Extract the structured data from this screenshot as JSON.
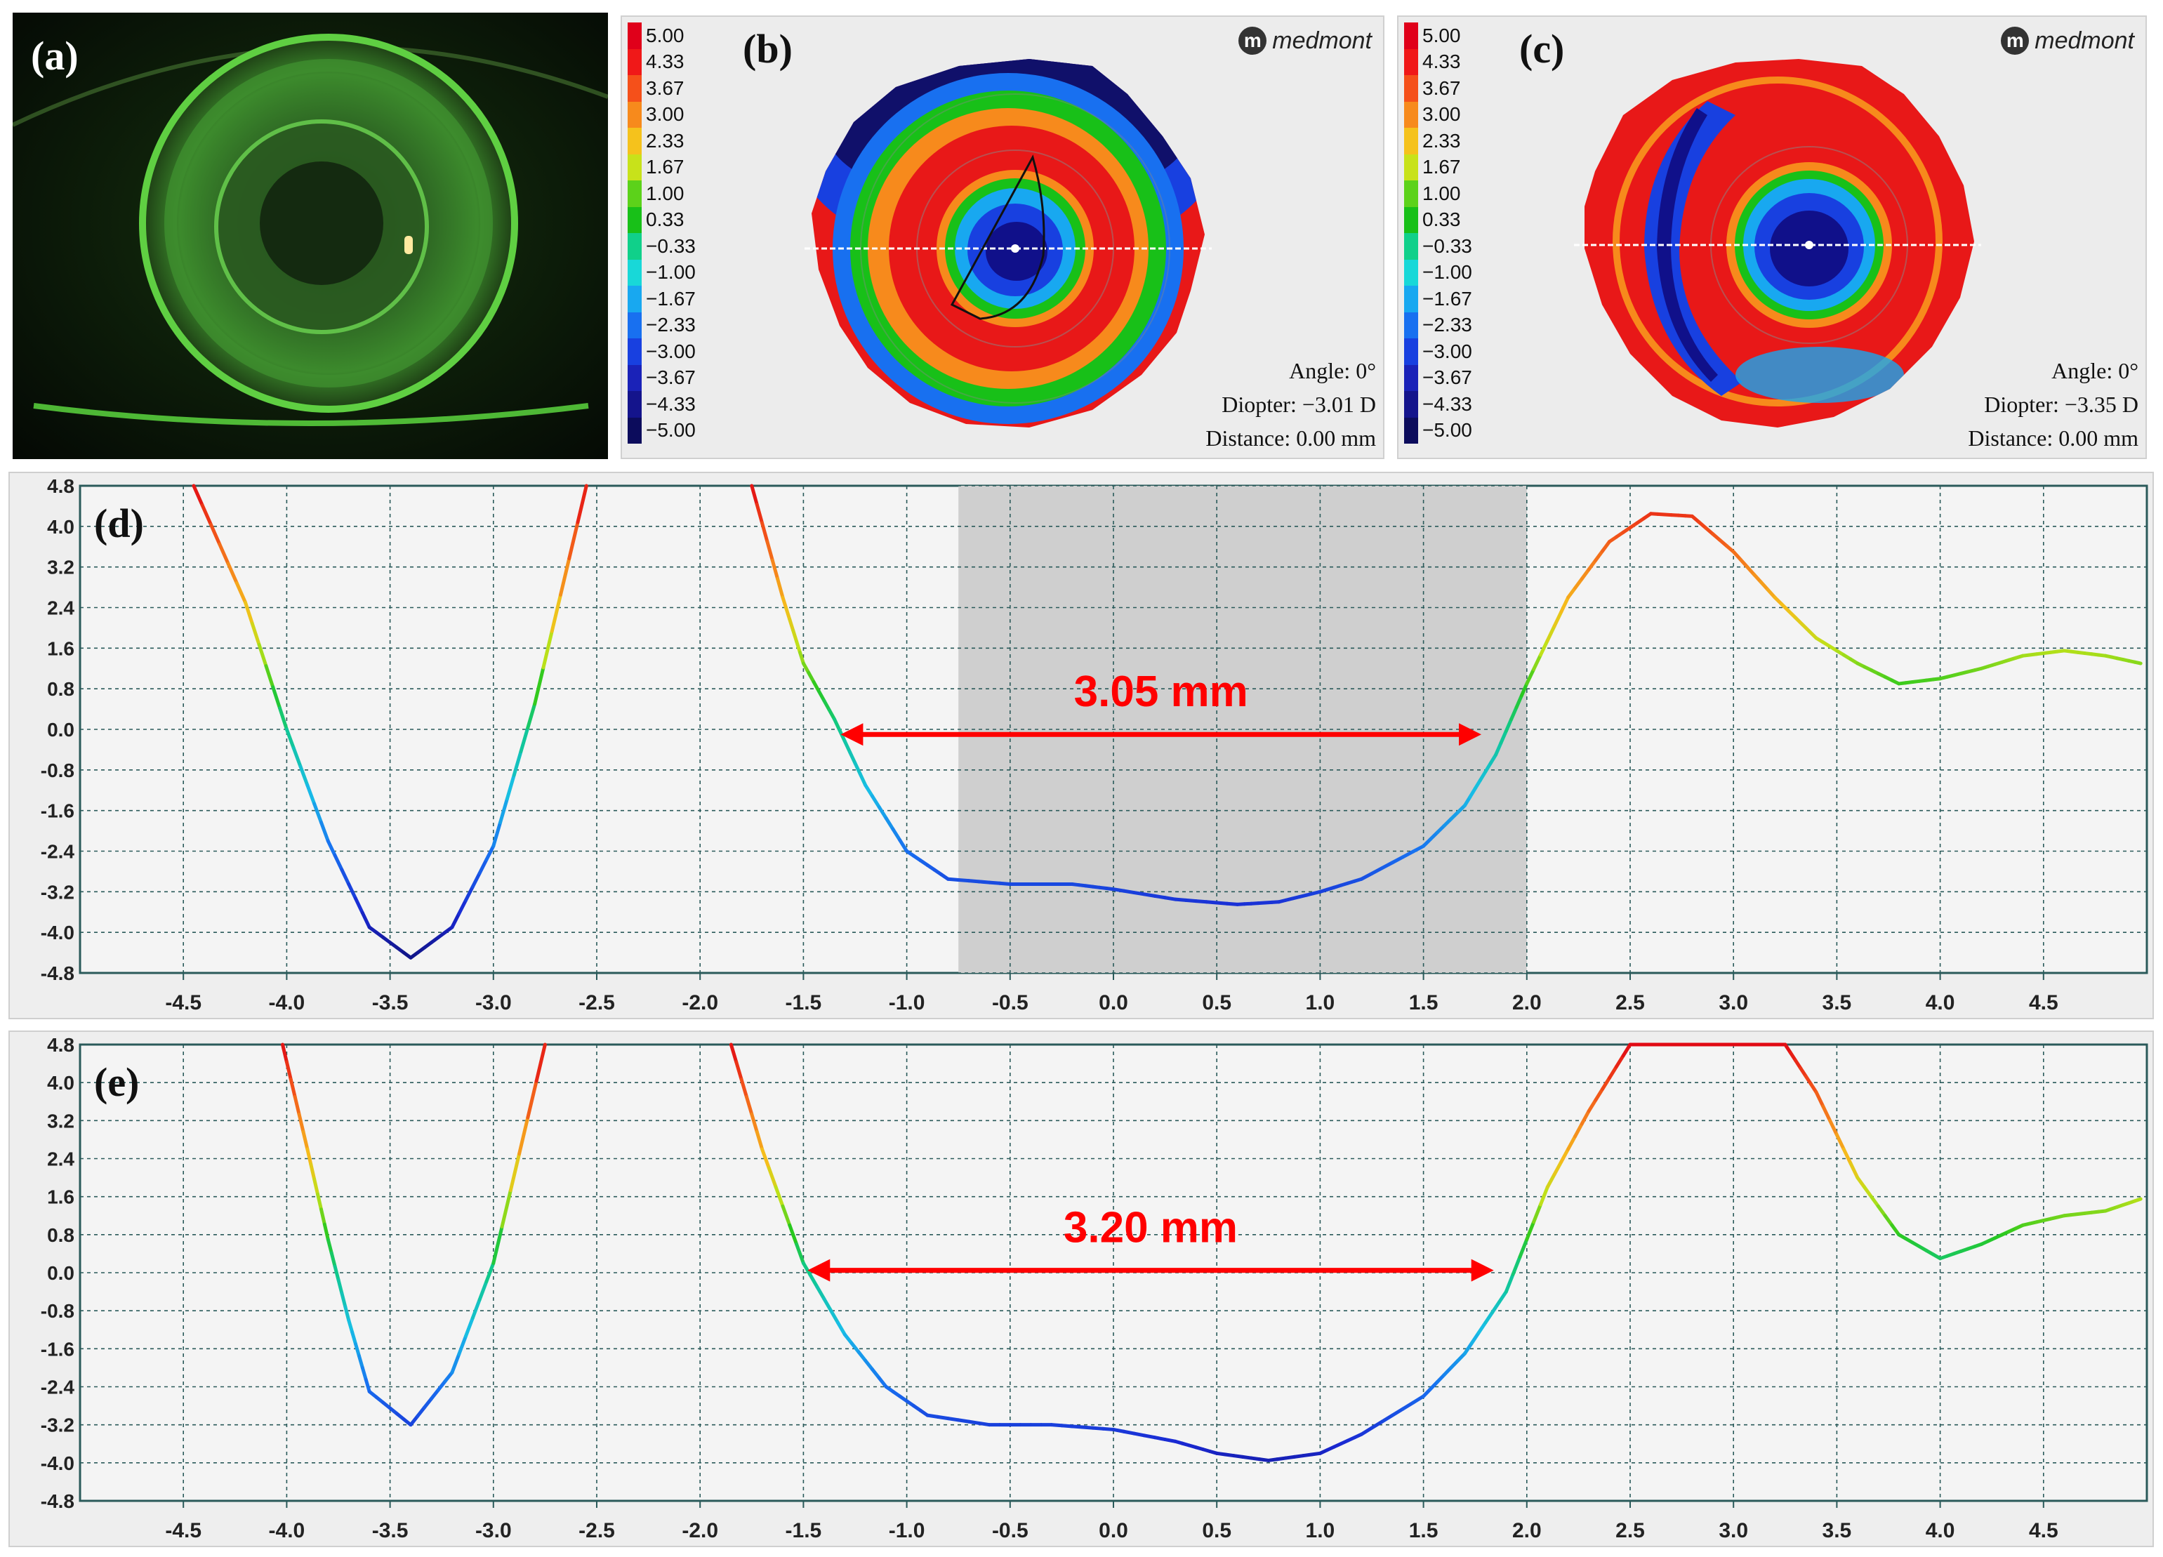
{
  "panels": {
    "a": {
      "label": "(a)"
    },
    "b": {
      "label": "(b)",
      "brand": "medmont",
      "brand_icon": "m",
      "angle": "Angle: 0°",
      "diopter": "Diopter: −3.01 D",
      "distance": "Distance: 0.00 mm"
    },
    "c": {
      "label": "(c)",
      "brand": "medmont",
      "brand_icon": "m",
      "angle": "Angle: 0°",
      "diopter": "Diopter: −3.35 D",
      "distance": "Distance: 0.00 mm"
    },
    "d": {
      "label": "(d)"
    },
    "e": {
      "label": "(e)"
    }
  },
  "legend": {
    "values": [
      "5.00",
      "4.33",
      "3.67",
      "3.00",
      "2.33",
      "1.67",
      "1.00",
      "0.33",
      "−0.33",
      "−1.00",
      "−1.67",
      "−2.33",
      "−3.00",
      "−3.67",
      "−4.33",
      "−5.00"
    ],
    "colors": [
      "#e0001a",
      "#f01818",
      "#f5501a",
      "#f78a1c",
      "#f5c21c",
      "#c8e21a",
      "#5cd21a",
      "#18c018",
      "#10d08a",
      "#18d8d8",
      "#18a8f0",
      "#1870f0",
      "#1840e0",
      "#1a22b8",
      "#14148c",
      "#0c0c5c"
    ]
  },
  "chart_data": [
    {
      "type": "line",
      "id": "d",
      "title": "(d)",
      "xlim": [
        -5,
        5
      ],
      "ylim": [
        -4.8,
        4.8
      ],
      "x_ticks": [
        "-4.5",
        "-4.0",
        "-3.5",
        "-3.0",
        "-2.5",
        "-2.0",
        "-1.5",
        "-1.0",
        "-0.5",
        "0.0",
        "0.5",
        "1.0",
        "1.5",
        "2.0",
        "2.5",
        "3.0",
        "3.5",
        "4.0",
        "4.5"
      ],
      "y_ticks": [
        "4.8",
        "4.0",
        "3.2",
        "2.4",
        "1.6",
        "0.8",
        "0.0",
        "-0.8",
        "-1.6",
        "-2.4",
        "-3.2",
        "-4.0",
        "-4.8"
      ],
      "shaded_region": [
        -0.75,
        2.0
      ],
      "annotation": {
        "text": "3.05 mm",
        "from": -1.32,
        "to": 1.78,
        "y": -0.1
      },
      "series": [
        {
          "name": "left",
          "x": [
            -4.45,
            -4.2,
            -4.0,
            -3.8,
            -3.6,
            -3.4,
            -3.2,
            -3.0,
            -2.8,
            -2.55
          ],
          "y": [
            4.8,
            2.5,
            0.0,
            -2.2,
            -3.9,
            -4.5,
            -3.9,
            -2.3,
            0.5,
            4.8
          ]
        },
        {
          "name": "right",
          "x": [
            -1.75,
            -1.6,
            -1.5,
            -1.35,
            -1.2,
            -1.0,
            -0.8,
            -0.5,
            -0.2,
            0.0,
            0.3,
            0.6,
            0.8,
            1.0,
            1.2,
            1.5,
            1.7,
            1.85,
            2.0,
            2.2,
            2.4,
            2.6,
            2.8,
            3.0,
            3.2,
            3.4,
            3.6,
            3.8,
            4.0,
            4.2,
            4.4,
            4.6,
            4.8,
            4.97
          ],
          "y": [
            4.8,
            2.6,
            1.3,
            0.2,
            -1.1,
            -2.4,
            -2.95,
            -3.05,
            -3.05,
            -3.15,
            -3.35,
            -3.45,
            -3.4,
            -3.2,
            -2.95,
            -2.3,
            -1.5,
            -0.5,
            0.9,
            2.6,
            3.7,
            4.25,
            4.2,
            3.5,
            2.6,
            1.8,
            1.3,
            0.9,
            1.0,
            1.2,
            1.45,
            1.55,
            1.45,
            1.3
          ]
        }
      ]
    },
    {
      "type": "line",
      "id": "e",
      "title": "(e)",
      "xlim": [
        -5,
        5
      ],
      "ylim": [
        -4.8,
        4.8
      ],
      "x_ticks": [
        "-4.5",
        "-4.0",
        "-3.5",
        "-3.0",
        "-2.5",
        "-2.0",
        "-1.5",
        "-1.0",
        "-0.5",
        "0.0",
        "0.5",
        "1.0",
        "1.5",
        "2.0",
        "2.5",
        "3.0",
        "3.5",
        "4.0",
        "4.5"
      ],
      "y_ticks": [
        "4.8",
        "4.0",
        "3.2",
        "2.4",
        "1.6",
        "0.8",
        "0.0",
        "-0.8",
        "-1.6",
        "-2.4",
        "-3.2",
        "-4.0",
        "-4.8"
      ],
      "annotation": {
        "text": "3.20 mm",
        "from": -1.48,
        "to": 1.84,
        "y": 0.05
      },
      "series": [
        {
          "name": "left",
          "x": [
            -4.02,
            -3.9,
            -3.8,
            -3.7,
            -3.6,
            -3.4,
            -3.2,
            -3.0,
            -2.75
          ],
          "y": [
            4.8,
            2.6,
            0.7,
            -1.0,
            -2.5,
            -3.2,
            -2.1,
            0.2,
            4.8
          ]
        },
        {
          "name": "right",
          "x": [
            -1.85,
            -1.7,
            -1.5,
            -1.3,
            -1.1,
            -0.9,
            -0.6,
            -0.3,
            0.0,
            0.3,
            0.5,
            0.75,
            1.0,
            1.2,
            1.5,
            1.7,
            1.9,
            2.1,
            2.3,
            2.5,
            3.25,
            3.4,
            3.6,
            3.8,
            4.0,
            4.2,
            4.4,
            4.6,
            4.8,
            4.97
          ],
          "y": [
            4.8,
            2.6,
            0.2,
            -1.3,
            -2.4,
            -3.0,
            -3.2,
            -3.2,
            -3.3,
            -3.55,
            -3.8,
            -3.95,
            -3.8,
            -3.4,
            -2.6,
            -1.7,
            -0.4,
            1.8,
            3.4,
            4.8,
            4.8,
            3.8,
            2.0,
            0.8,
            0.3,
            0.6,
            1.0,
            1.2,
            1.3,
            1.55
          ]
        }
      ]
    }
  ]
}
